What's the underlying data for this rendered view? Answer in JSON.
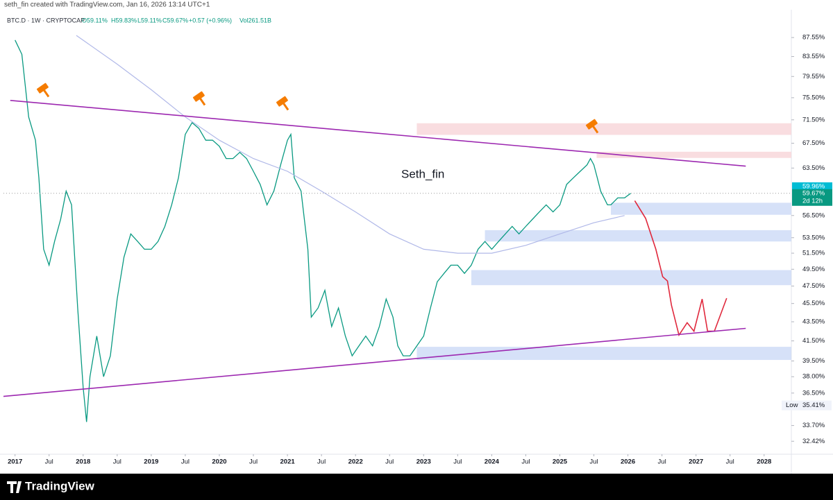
{
  "chart_data": {
    "type": "line",
    "title": "seth_fin created with TradingView.com, Jan 16, 2026 13:14 UTC+1",
    "legend": {
      "symbol": "BTC.D · 1W · CRYPTOCAP",
      "open": "O59.11%",
      "high": "H59.83%",
      "low": "L59.11%",
      "close": "C59.67%",
      "change": "+0.57 (+0.96%)",
      "volume": "Vol261.51B"
    },
    "watermark": "Seth_fin",
    "brand": "TradingView",
    "log_scale": true,
    "grid": false,
    "xlim": [
      2016.83,
      2028.4
    ],
    "ylim": [
      31.4,
      92.8
    ],
    "xticks": [
      2017,
      {
        "value": 2017.5,
        "label": "Jul"
      },
      2018,
      {
        "value": 2018.5,
        "label": "Jul"
      },
      2019,
      {
        "value": 2019.5,
        "label": "Jul"
      },
      2020,
      {
        "value": 2020.5,
        "label": "Jul"
      },
      2021,
      {
        "value": 2021.5,
        "label": "Jul"
      },
      2022,
      {
        "value": 2022.5,
        "label": "Jul"
      },
      2023,
      {
        "value": 2023.5,
        "label": "Jul"
      },
      2024,
      {
        "value": 2024.5,
        "label": "Jul"
      },
      2025,
      {
        "value": 2025.5,
        "label": "Jul"
      },
      2026,
      {
        "value": 2026.5,
        "label": "Jul"
      },
      2027,
      {
        "value": 2027.5,
        "label": "Jul"
      },
      2028
    ],
    "yticks": [
      {
        "value": 87.55,
        "label": "87.55%"
      },
      {
        "value": 83.55,
        "label": "83.55%"
      },
      {
        "value": 79.55,
        "label": "79.55%"
      },
      {
        "value": 75.5,
        "label": "75.50%"
      },
      {
        "value": 71.5,
        "label": "71.50%"
      },
      {
        "value": 67.5,
        "label": "67.50%"
      },
      {
        "value": 63.5,
        "label": "63.50%"
      },
      {
        "value": 56.5,
        "label": "56.50%"
      },
      {
        "value": 53.5,
        "label": "53.50%"
      },
      {
        "value": 51.5,
        "label": "51.50%"
      },
      {
        "value": 49.5,
        "label": "49.50%"
      },
      {
        "value": 47.5,
        "label": "47.50%"
      },
      {
        "value": 45.5,
        "label": "45.50%"
      },
      {
        "value": 43.5,
        "label": "43.50%"
      },
      {
        "value": 41.5,
        "label": "41.50%"
      },
      {
        "value": 39.5,
        "label": "39.50%"
      },
      {
        "value": 38,
        "label": "38.00%"
      },
      {
        "value": 36.5,
        "label": "36.50%"
      },
      {
        "value": 33.7,
        "label": "33.70%"
      },
      {
        "value": 32.42,
        "label": "32.42%"
      }
    ],
    "series": [
      {
        "name": "BTC.D",
        "color": "#089981",
        "x": [
          2017.0,
          2017.1,
          2017.2,
          2017.3,
          2017.35,
          2017.42,
          2017.5,
          2017.58,
          2017.67,
          2017.75,
          2017.83,
          2017.92,
          2018.0,
          2018.05,
          2018.1,
          2018.2,
          2018.3,
          2018.4,
          2018.5,
          2018.6,
          2018.7,
          2018.8,
          2018.9,
          2019.0,
          2019.1,
          2019.2,
          2019.3,
          2019.4,
          2019.5,
          2019.6,
          2019.7,
          2019.8,
          2019.9,
          2020.0,
          2020.1,
          2020.2,
          2020.3,
          2020.4,
          2020.5,
          2020.6,
          2020.7,
          2020.8,
          2020.9,
          2021.0,
          2021.05,
          2021.1,
          2021.2,
          2021.3,
          2021.35,
          2021.45,
          2021.55,
          2021.65,
          2021.75,
          2021.85,
          2021.95,
          2022.05,
          2022.15,
          2022.25,
          2022.35,
          2022.45,
          2022.55,
          2022.62,
          2022.7,
          2022.8,
          2022.9,
          2023.0,
          2023.1,
          2023.2,
          2023.3,
          2023.4,
          2023.5,
          2023.6,
          2023.7,
          2023.8,
          2023.9,
          2024.0,
          2024.1,
          2024.2,
          2024.3,
          2024.4,
          2024.5,
          2024.6,
          2024.7,
          2024.8,
          2024.9,
          2025.0,
          2025.1,
          2025.2,
          2025.3,
          2025.4,
          2025.45,
          2025.5,
          2025.55,
          2025.6,
          2025.7,
          2025.75,
          2025.85,
          2025.95,
          2026.04
        ],
        "values": [
          87,
          84,
          72,
          68,
          62,
          52,
          50,
          53,
          56,
          60,
          58,
          45,
          37,
          34,
          38,
          42,
          38,
          40,
          46,
          51,
          54,
          53,
          52,
          52,
          53,
          55,
          58,
          62,
          69,
          71,
          70,
          68,
          68,
          67,
          65,
          65,
          66,
          65,
          63,
          61,
          58,
          60,
          64,
          68,
          69,
          62,
          60,
          52,
          44,
          45,
          47,
          43,
          45,
          42,
          40,
          41,
          42,
          41,
          43,
          46,
          44,
          41,
          40,
          40,
          41,
          42,
          45,
          48,
          49,
          50,
          50,
          49,
          50,
          52,
          53,
          52,
          53,
          54,
          55,
          54,
          55,
          56,
          57,
          58,
          57,
          58,
          61,
          62,
          63,
          64,
          65,
          64,
          62,
          60,
          58,
          58,
          59,
          59,
          59.67
        ]
      },
      {
        "name": "200W MA",
        "color": "#b0b8e8",
        "x": [
          2017.9,
          2018.5,
          2019.0,
          2019.5,
          2020.0,
          2020.5,
          2021.0,
          2021.5,
          2022.0,
          2022.5,
          2023.0,
          2023.5,
          2024.0,
          2024.5,
          2025.0,
          2025.5,
          2025.95
        ],
        "values": [
          88,
          82,
          77,
          72,
          68,
          65,
          63,
          60,
          57,
          54,
          52,
          51.5,
          51.5,
          52.5,
          54,
          55.5,
          56.5
        ]
      },
      {
        "name": "Projection",
        "color": "#e0283c",
        "x": [
          2026.1,
          2026.26,
          2026.41,
          2026.51,
          2026.58,
          2026.64,
          2026.75,
          2026.87,
          2026.97,
          2027.09,
          2027.17,
          2027.27,
          2027.45
        ],
        "values": [
          58.6,
          56.1,
          52.0,
          48.6,
          48.1,
          45.3,
          42.1,
          43.4,
          42.5,
          46.0,
          42.5,
          42.5,
          46.1
        ]
      },
      {
        "name": "Upper trendline",
        "color": "#9c27b0",
        "x": [
          2016.93,
          2027.73
        ],
        "values": [
          75.0,
          63.8
        ]
      },
      {
        "name": "Lower trendline",
        "color": "#9c27b0",
        "x": [
          2016.83,
          2027.73
        ],
        "values": [
          36.2,
          42.8
        ]
      }
    ],
    "zones": [
      {
        "start": 2022.9,
        "low": 68.9,
        "high": 70.9,
        "color": "#f8d7da"
      },
      {
        "start": 2025.54,
        "low": 65.1,
        "high": 66.1,
        "color": "#f8d7da"
      },
      {
        "start": 2025.75,
        "low": 56.6,
        "high": 58.3,
        "color": "#cfdcf7"
      },
      {
        "start": 2023.9,
        "low": 53.0,
        "high": 54.5,
        "color": "#cfdcf7"
      },
      {
        "start": 2023.7,
        "low": 47.6,
        "high": 49.4,
        "color": "#cfdcf7"
      },
      {
        "start": 2022.9,
        "low": 39.6,
        "high": 40.9,
        "color": "#cfdcf7"
      }
    ],
    "marker_price": {
      "value": 59.96,
      "label": "59.96%",
      "color": "#00bcd4"
    },
    "last_price": {
      "value": 59.67,
      "label": "59.67%",
      "countdown": "2d 12h",
      "color": "#089981"
    },
    "low": {
      "label": "Low",
      "value": 35.41,
      "value_label": "35.41%"
    }
  }
}
